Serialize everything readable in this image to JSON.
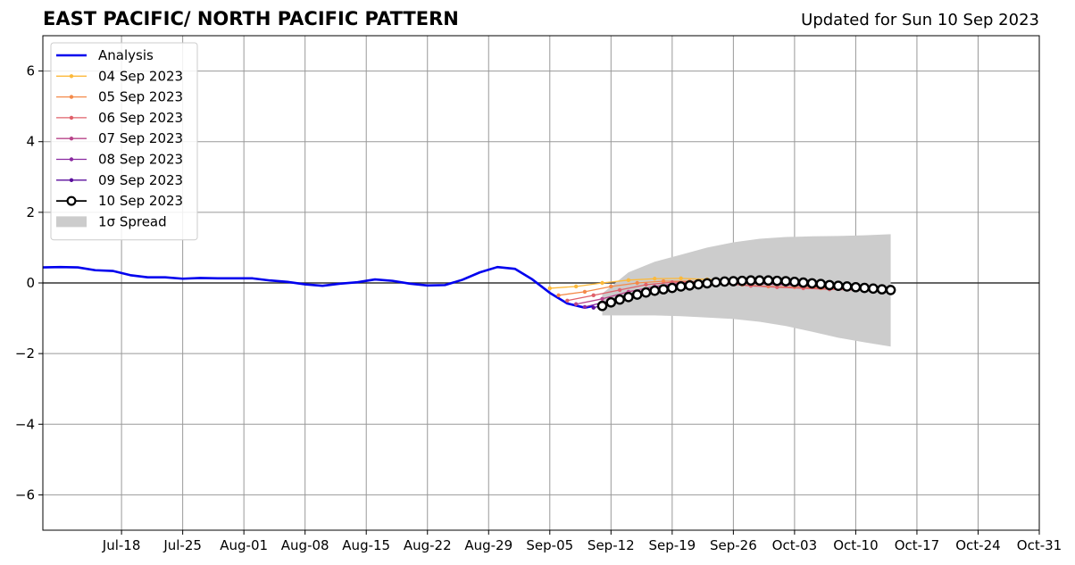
{
  "title": "EAST PACIFIC/ NORTH PACIFIC PATTERN",
  "subtitle": "Updated for Sun 10 Sep 2023",
  "colors": {
    "analysis": "#0000ee",
    "spread": "#cccccc",
    "grid": "#999999",
    "forecasts": [
      "#fcb93a",
      "#f48a4a",
      "#e0606a",
      "#b8448a",
      "#8a2aa0",
      "#5b0f9c",
      "#000000"
    ]
  },
  "chart_data": {
    "type": "line",
    "title": "EAST PACIFIC/ NORTH PACIFIC PATTERN",
    "xlabel": "",
    "ylabel": "",
    "xlim": [
      "2023-07-09",
      "2023-10-31"
    ],
    "ylim": [
      -7,
      7
    ],
    "grid": true,
    "legend_position": "top-left",
    "x_ticks": [
      "Jul-18",
      "Jul-25",
      "Aug-01",
      "Aug-08",
      "Aug-15",
      "Aug-22",
      "Aug-29",
      "Sep-05",
      "Sep-12",
      "Sep-19",
      "Sep-26",
      "Oct-03",
      "Oct-10",
      "Oct-17",
      "Oct-24",
      "Oct-31"
    ],
    "y_ticks": [
      "−6",
      "−4",
      "−2",
      "0",
      "2",
      "4",
      "6"
    ],
    "series": [
      {
        "name": "Analysis",
        "x": [
          "2023-07-09",
          "2023-07-11",
          "2023-07-13",
          "2023-07-15",
          "2023-07-17",
          "2023-07-19",
          "2023-07-21",
          "2023-07-23",
          "2023-07-25",
          "2023-07-27",
          "2023-07-29",
          "2023-07-31",
          "2023-08-02",
          "2023-08-04",
          "2023-08-06",
          "2023-08-08",
          "2023-08-10",
          "2023-08-12",
          "2023-08-14",
          "2023-08-16",
          "2023-08-18",
          "2023-08-20",
          "2023-08-22",
          "2023-08-24",
          "2023-08-26",
          "2023-08-28",
          "2023-08-30",
          "2023-09-01",
          "2023-09-03",
          "2023-09-05",
          "2023-09-07",
          "2023-09-09",
          "2023-09-10"
        ],
        "y": [
          0.44,
          0.45,
          0.44,
          0.36,
          0.34,
          0.22,
          0.16,
          0.16,
          0.12,
          0.14,
          0.13,
          0.13,
          0.13,
          0.07,
          0.03,
          -0.04,
          -0.08,
          -0.02,
          0.02,
          0.1,
          0.06,
          -0.02,
          -0.07,
          -0.06,
          0.09,
          0.3,
          0.45,
          0.4,
          0.1,
          -0.28,
          -0.58,
          -0.7,
          -0.65
        ]
      },
      {
        "name": "04 Sep 2023",
        "x": [
          "2023-09-05",
          "2023-09-08",
          "2023-09-11",
          "2023-09-14",
          "2023-09-17",
          "2023-09-20",
          "2023-09-23",
          "2023-09-26",
          "2023-09-29",
          "2023-10-02",
          "2023-10-05",
          "2023-10-08"
        ],
        "y": [
          -0.15,
          -0.1,
          0.0,
          0.08,
          0.12,
          0.13,
          0.1,
          0.05,
          0.0,
          -0.05,
          -0.1,
          -0.15
        ]
      },
      {
        "name": "05 Sep 2023",
        "x": [
          "2023-09-06",
          "2023-09-09",
          "2023-09-12",
          "2023-09-15",
          "2023-09-18",
          "2023-09-21",
          "2023-09-24",
          "2023-09-27",
          "2023-09-30",
          "2023-10-03",
          "2023-10-06",
          "2023-10-09"
        ],
        "y": [
          -0.35,
          -0.25,
          -0.1,
          0.0,
          0.05,
          0.05,
          0.0,
          -0.05,
          -0.1,
          -0.12,
          -0.15,
          -0.18
        ]
      },
      {
        "name": "06 Sep 2023",
        "x": [
          "2023-09-07",
          "2023-09-10",
          "2023-09-13",
          "2023-09-16",
          "2023-09-19",
          "2023-09-22",
          "2023-09-25",
          "2023-09-28",
          "2023-10-01",
          "2023-10-04",
          "2023-10-07",
          "2023-10-10"
        ],
        "y": [
          -0.5,
          -0.35,
          -0.2,
          -0.05,
          0.02,
          0.03,
          -0.02,
          -0.08,
          -0.12,
          -0.15,
          -0.18,
          -0.2
        ]
      },
      {
        "name": "07 Sep 2023",
        "x": [
          "2023-09-08",
          "2023-09-11",
          "2023-09-14",
          "2023-09-17",
          "2023-09-20",
          "2023-09-23",
          "2023-09-26",
          "2023-09-29",
          "2023-10-02",
          "2023-10-05",
          "2023-10-08",
          "2023-10-11"
        ],
        "y": [
          -0.6,
          -0.45,
          -0.25,
          -0.1,
          0.0,
          0.03,
          0.02,
          -0.02,
          -0.06,
          -0.1,
          -0.14,
          -0.18
        ]
      },
      {
        "name": "08 Sep 2023",
        "x": [
          "2023-09-09",
          "2023-09-12",
          "2023-09-15",
          "2023-09-18",
          "2023-09-21",
          "2023-09-24",
          "2023-09-27",
          "2023-09-30",
          "2023-10-03",
          "2023-10-06",
          "2023-10-09",
          "2023-10-12"
        ],
        "y": [
          -0.68,
          -0.5,
          -0.28,
          -0.1,
          0.0,
          0.04,
          0.03,
          0.0,
          -0.04,
          -0.08,
          -0.12,
          -0.16
        ]
      },
      {
        "name": "09 Sep 2023",
        "x": [
          "2023-09-10",
          "2023-09-13",
          "2023-09-16",
          "2023-09-19",
          "2023-09-22",
          "2023-09-25",
          "2023-09-28",
          "2023-10-01",
          "2023-10-04",
          "2023-10-07",
          "2023-10-10",
          "2023-10-13"
        ],
        "y": [
          -0.7,
          -0.5,
          -0.28,
          -0.12,
          -0.02,
          0.03,
          0.05,
          0.03,
          -0.02,
          -0.07,
          -0.12,
          -0.16
        ]
      },
      {
        "name": "10 Sep 2023",
        "x": [
          "2023-09-11",
          "2023-09-12",
          "2023-09-13",
          "2023-09-14",
          "2023-09-15",
          "2023-09-16",
          "2023-09-17",
          "2023-09-18",
          "2023-09-19",
          "2023-09-20",
          "2023-09-21",
          "2023-09-22",
          "2023-09-23",
          "2023-09-24",
          "2023-09-25",
          "2023-09-26",
          "2023-09-27",
          "2023-09-28",
          "2023-09-29",
          "2023-09-30",
          "2023-10-01",
          "2023-10-02",
          "2023-10-03",
          "2023-10-04",
          "2023-10-05",
          "2023-10-06",
          "2023-10-07",
          "2023-10-08",
          "2023-10-09",
          "2023-10-10",
          "2023-10-11",
          "2023-10-12",
          "2023-10-13",
          "2023-10-14"
        ],
        "y": [
          -0.65,
          -0.55,
          -0.47,
          -0.4,
          -0.33,
          -0.27,
          -0.22,
          -0.18,
          -0.14,
          -0.1,
          -0.07,
          -0.04,
          -0.01,
          0.02,
          0.04,
          0.05,
          0.06,
          0.07,
          0.07,
          0.07,
          0.06,
          0.05,
          0.03,
          0.01,
          -0.01,
          -0.03,
          -0.06,
          -0.08,
          -0.1,
          -0.12,
          -0.14,
          -0.16,
          -0.18,
          -0.2
        ]
      }
    ],
    "spread": {
      "name": "1σ Spread",
      "x": [
        "2023-09-11",
        "2023-09-14",
        "2023-09-17",
        "2023-09-20",
        "2023-09-23",
        "2023-09-26",
        "2023-09-29",
        "2023-10-02",
        "2023-10-05",
        "2023-10-08",
        "2023-10-11",
        "2023-10-14"
      ],
      "upper": [
        -0.3,
        0.3,
        0.6,
        0.8,
        1.0,
        1.15,
        1.25,
        1.3,
        1.32,
        1.33,
        1.35,
        1.38
      ],
      "lower": [
        -0.92,
        -0.92,
        -0.92,
        -0.94,
        -0.98,
        -1.02,
        -1.1,
        -1.22,
        -1.38,
        -1.55,
        -1.68,
        -1.8
      ]
    }
  }
}
